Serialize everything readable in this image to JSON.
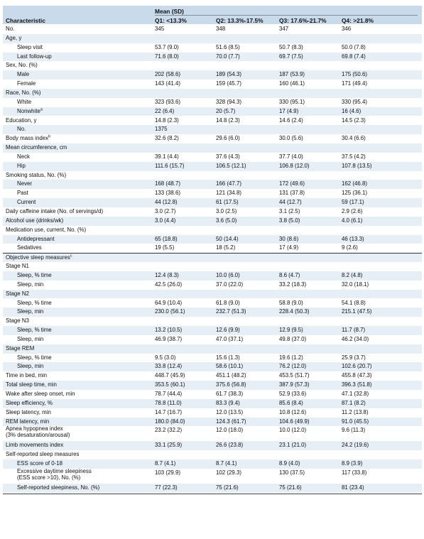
{
  "table": {
    "header": {
      "mean_label": "Mean (SD)",
      "char_label": "Characteristic",
      "cols": [
        "Q1: <13.3%",
        "Q2: 13.3%-17.5%",
        "Q3: 17.6%-21.7%",
        "Q4: >21.8%"
      ]
    },
    "rows": [
      {
        "label": "No.",
        "sub": false,
        "vals": [
          "345",
          "348",
          "347",
          "346"
        ]
      },
      {
        "label": "Age, y",
        "sub": false,
        "vals": [
          "",
          "",
          "",
          ""
        ]
      },
      {
        "label": "Sleep visit",
        "sub": true,
        "vals": [
          "53.7 (9.0)",
          "51.6 (8.5)",
          "50.7 (8.3)",
          "50.0 (7.8)"
        ]
      },
      {
        "label": "Last follow-up",
        "sub": true,
        "vals": [
          "71.6 (8.0)",
          "70.0 (7.7)",
          "69.7 (7.5)",
          "69.8 (7.4)"
        ]
      },
      {
        "label": "Sex, No. (%)",
        "sub": false,
        "vals": [
          "",
          "",
          "",
          ""
        ]
      },
      {
        "label": "Male",
        "sub": true,
        "vals": [
          "202 (58.6)",
          "189 (54.3)",
          "187 (53.9)",
          "175 (50.6)"
        ]
      },
      {
        "label": "Female",
        "sub": true,
        "vals": [
          "143 (41.4)",
          "159 (45.7)",
          "160 (46.1)",
          "171 (49.4)"
        ]
      },
      {
        "label": "Race, No. (%)",
        "sub": false,
        "vals": [
          "",
          "",
          "",
          ""
        ]
      },
      {
        "label": "White",
        "sub": true,
        "vals": [
          "323 (93.6)",
          "328 (94.3)",
          "330 (95.1)",
          "330 (95.4)"
        ]
      },
      {
        "label": "Nonwhite",
        "sup": "a",
        "sub": true,
        "vals": [
          "22 (6.4)",
          "20 (5.7)",
          "17 (4.9)",
          "16 (4.6)"
        ]
      },
      {
        "label": "Education, y",
        "sub": false,
        "vals": [
          "14.8 (2.3)",
          "14.8 (2.3)",
          "14.6 (2.4)",
          "14.5 (2.3)"
        ]
      },
      {
        "label": "No.",
        "sub": true,
        "vals": [
          "1375",
          "",
          "",
          ""
        ]
      },
      {
        "label": "Body mass index",
        "sup": "b",
        "sub": false,
        "vals": [
          "32.6 (8.2)",
          "29.6 (6.0)",
          "30.0 (5.6)",
          "30.4 (6.6)"
        ]
      },
      {
        "label": "Mean circumference, cm",
        "sub": false,
        "vals": [
          "",
          "",
          "",
          ""
        ]
      },
      {
        "label": "Neck",
        "sub": true,
        "vals": [
          "39.1 (4.4)",
          "37.6 (4.3)",
          "37.7 (4.0)",
          "37.5 (4.2)"
        ]
      },
      {
        "label": "Hip",
        "sub": true,
        "vals": [
          "111.6 (15.7)",
          "106.5 (12.1)",
          "106.8 (12.0)",
          "107.8 (13.5)"
        ]
      },
      {
        "label": "Smoking status, No. (%)",
        "sub": false,
        "vals": [
          "",
          "",
          "",
          ""
        ]
      },
      {
        "label": "Never",
        "sub": true,
        "vals": [
          "168 (48.7)",
          "166 (47.7)",
          "172 (49.6)",
          "162 (46.8)"
        ]
      },
      {
        "label": "Past",
        "sub": true,
        "vals": [
          "133 (38.6)",
          "121 (34.8)",
          "131 (37.8)",
          "125 (36.1)"
        ]
      },
      {
        "label": "Current",
        "sub": true,
        "vals": [
          "44 (12.8)",
          "61 (17.5)",
          "44 (12.7)",
          "59 (17.1)"
        ]
      },
      {
        "label": "Daily caffeine intake (No. of servings/d)",
        "sub": false,
        "vals": [
          "3.0 (2.7)",
          "3.0 (2.5)",
          "3.1 (2.5)",
          "2.9 (2.6)"
        ]
      },
      {
        "label": "Alcohol use (drinks/wk)",
        "sub": false,
        "vals": [
          "3.0 (4.4)",
          "3.6 (5.0)",
          "3.8 (5.0)",
          "4.0 (6.1)"
        ]
      },
      {
        "label": "Medication use, current, No. (%)",
        "sub": false,
        "vals": [
          "",
          "",
          "",
          ""
        ]
      },
      {
        "label": "Antidepressant",
        "sub": true,
        "vals": [
          "65 (18.8)",
          "50 (14.4)",
          "30 (8.6)",
          "46 (13.3)"
        ]
      },
      {
        "label": "Sedatives",
        "sub": true,
        "vals": [
          "19 (5.5)",
          "18 (5.2)",
          "17 (4.9)",
          "9 (2.6)"
        ]
      },
      {
        "label": "Objective sleep measures",
        "sup": "c",
        "sub": false,
        "sep": true,
        "vals": [
          "",
          "",
          "",
          ""
        ]
      },
      {
        "label": "Stage N1",
        "sub": false,
        "vals": [
          "",
          "",
          "",
          ""
        ]
      },
      {
        "label": "Sleep, % time",
        "sub": true,
        "vals": [
          "12.4 (8.3)",
          "10.0 (6.0)",
          "8.6 (4.7)",
          "8.2 (4.8)"
        ]
      },
      {
        "label": "Sleep, min",
        "sub": true,
        "vals": [
          "42.5 (26.0)",
          "37.0 (22.0)",
          "33.2 (18.3)",
          "32.0 (18.1)"
        ]
      },
      {
        "label": "Stage N2",
        "sub": false,
        "vals": [
          "",
          "",
          "",
          ""
        ]
      },
      {
        "label": "Sleep, % time",
        "sub": true,
        "vals": [
          "64.9 (10.4)",
          "61.8 (9.0)",
          "58.8 (9.0)",
          "54.1 (8.8)"
        ]
      },
      {
        "label": "Sleep, min",
        "sub": true,
        "vals": [
          "230.0 (56.1)",
          "232.7 (51.3)",
          "228.4 (50.3)",
          "215.1 (47.5)"
        ]
      },
      {
        "label": "Stage N3",
        "sub": false,
        "vals": [
          "",
          "",
          "",
          ""
        ]
      },
      {
        "label": "Sleep, % time",
        "sub": true,
        "vals": [
          "13.2 (10.5)",
          "12.6 (9.9)",
          "12.9 (9.5)",
          "11.7 (8.7)"
        ]
      },
      {
        "label": "Sleep, min",
        "sub": true,
        "vals": [
          "46.9 (38.7)",
          "47.0 (37.1)",
          "49.8 (37.0)",
          "46.2 (34.0)"
        ]
      },
      {
        "label": "Stage REM",
        "sub": false,
        "vals": [
          "",
          "",
          "",
          ""
        ]
      },
      {
        "label": "Sleep, % time",
        "sub": true,
        "vals": [
          "9.5 (3.0)",
          "15.6 (1.3)",
          "19.6 (1.2)",
          "25.9 (3.7)"
        ]
      },
      {
        "label": "Sleep, min",
        "sub": true,
        "vals": [
          "33.8 (12.4)",
          "58.6 (10.1)",
          "76.2 (12.0)",
          "102.6 (20.7)"
        ]
      },
      {
        "label": "Time in bed, min",
        "sub": false,
        "vals": [
          "448.7 (45.9)",
          "451.1 (48.2)",
          "453.5 (51.7)",
          "455.8 (47.3)"
        ]
      },
      {
        "label": "Total sleep time, min",
        "sub": false,
        "vals": [
          "353.5 (60.1)",
          "375.6 (56.8)",
          "387.9 (57.3)",
          "396.3 (51.8)"
        ]
      },
      {
        "label": "Wake after sleep onset, min",
        "sub": false,
        "vals": [
          "78.7 (44.4)",
          "61.7 (38.3)",
          "52.9 (33.6)",
          "47.1 (32.8)"
        ]
      },
      {
        "label": "Sleep efficiency, %",
        "sub": false,
        "vals": [
          "78.8 (11.0)",
          "83.3 (9.4)",
          "85.6 (8.4)",
          "87.1 (8.2)"
        ]
      },
      {
        "label": "Sleep latency, min",
        "sub": false,
        "vals": [
          "14.7 (16.7)",
          "12.0 (13.5)",
          "10.8 (12.6)",
          "11.2 (13.8)"
        ]
      },
      {
        "label": "REM latency, min",
        "sub": false,
        "vals": [
          "180.0 (84.0)",
          "124.3 (61.7)",
          "104.6 (49.9)",
          "91.0 (45.5)"
        ]
      },
      {
        "label": "Apnea hypopnea index",
        "label2": "(3% desaturation/arousal)",
        "sub": false,
        "vals": [
          "23.2 (32.2)",
          "12.0 (18.0)",
          "10.0 (12.0)",
          "9.6 (11.3)"
        ]
      },
      {
        "label": "Limb movements index",
        "sub": false,
        "vals": [
          "33.1 (25.9)",
          "26.6 (23.8)",
          "23.1 (21.0)",
          "24.2 (19.6)"
        ]
      },
      {
        "label": "Self-reported sleep measures",
        "sub": false,
        "vals": [
          "",
          "",
          "",
          ""
        ]
      },
      {
        "label": "ESS score of 0-18",
        "sub": true,
        "vals": [
          "8.7 (4.1)",
          "8.7 (4.1)",
          "8.9 (4.0)",
          "8.9 (3.9)"
        ]
      },
      {
        "label": "Excessive daytime sleepiness",
        "label2": "(ESS score >10), No. (%)",
        "sub": true,
        "vals": [
          "103 (29.9)",
          "102 (29.3)",
          "130 (37.5)",
          "117 (33.8)"
        ]
      },
      {
        "label": "Self-reported sleepiness, No. (%)",
        "sub": true,
        "vals": [
          "77 (22.3)",
          "75 (21.6)",
          "75 (21.6)",
          "81 (23.4)"
        ]
      }
    ]
  }
}
